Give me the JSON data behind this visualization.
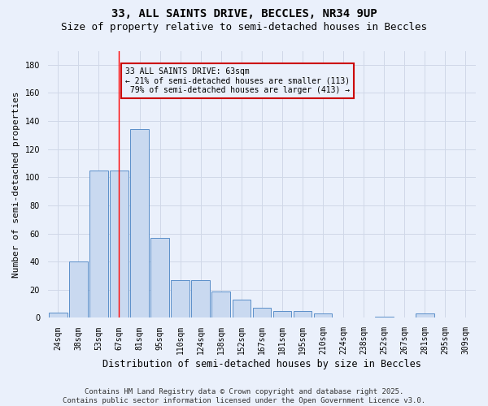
{
  "title": "33, ALL SAINTS DRIVE, BECCLES, NR34 9UP",
  "subtitle": "Size of property relative to semi-detached houses in Beccles",
  "xlabel": "Distribution of semi-detached houses by size in Beccles",
  "ylabel": "Number of semi-detached properties",
  "categories": [
    "24sqm",
    "38sqm",
    "53sqm",
    "67sqm",
    "81sqm",
    "95sqm",
    "110sqm",
    "124sqm",
    "138sqm",
    "152sqm",
    "167sqm",
    "181sqm",
    "195sqm",
    "210sqm",
    "224sqm",
    "238sqm",
    "252sqm",
    "267sqm",
    "281sqm",
    "295sqm",
    "309sqm"
  ],
  "values": [
    4,
    40,
    105,
    105,
    134,
    57,
    27,
    27,
    19,
    13,
    7,
    5,
    5,
    3,
    0,
    0,
    1,
    0,
    3,
    0,
    0
  ],
  "bar_color": "#c9d9f0",
  "bar_edge_color": "#5b8fc9",
  "grid_color": "#d0d8e8",
  "background_color": "#eaf0fb",
  "property_label": "33 ALL SAINTS DRIVE: 63sqm",
  "pct_smaller": 21,
  "n_smaller": 113,
  "pct_larger": 79,
  "n_larger": 413,
  "vline_x": 3.0,
  "annotation_box_color": "#cc0000",
  "ylim": [
    0,
    190
  ],
  "yticks": [
    0,
    20,
    40,
    60,
    80,
    100,
    120,
    140,
    160,
    180
  ],
  "footer": "Contains HM Land Registry data © Crown copyright and database right 2025.\nContains public sector information licensed under the Open Government Licence v3.0.",
  "title_fontsize": 10,
  "subtitle_fontsize": 9,
  "xlabel_fontsize": 8.5,
  "ylabel_fontsize": 8,
  "tick_fontsize": 7,
  "ann_fontsize": 7,
  "footer_fontsize": 6.5
}
